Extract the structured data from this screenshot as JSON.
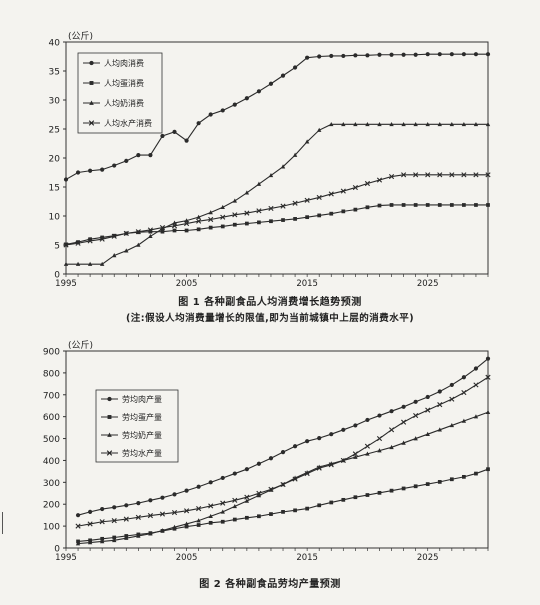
{
  "chart_data": [
    {
      "type": "line",
      "unit_label": "(公斤)",
      "caption_title": "图 1  各种副食品人均消费增长趋势预测",
      "caption_note": "(注:假设人均消费量增长的限值,即为当前城镇中上层的消费水平)",
      "x_ticks": [
        "1995",
        "2005",
        "2015",
        "2025"
      ],
      "y_ticks": [
        "0",
        "5",
        "10",
        "15",
        "20",
        "25",
        "30",
        "35",
        "40"
      ],
      "xlim": [
        1995,
        2030
      ],
      "ylim": [
        0,
        40
      ],
      "grid": false,
      "legend_position": "top-left",
      "x": [
        1995,
        1996,
        1997,
        1998,
        1999,
        2000,
        2001,
        2002,
        2003,
        2004,
        2005,
        2006,
        2007,
        2008,
        2009,
        2010,
        2011,
        2012,
        2013,
        2014,
        2015,
        2016,
        2017,
        2018,
        2019,
        2020,
        2021,
        2022,
        2023,
        2024,
        2025,
        2026,
        2027,
        2028,
        2029,
        2030
      ],
      "series": [
        {
          "name": "人均肉消费",
          "marker": "circle",
          "values": [
            16.3,
            17.5,
            17.8,
            18.0,
            18.7,
            19.5,
            20.5,
            20.5,
            23.8,
            24.5,
            23.0,
            26.0,
            27.5,
            28.2,
            29.2,
            30.3,
            31.5,
            32.8,
            34.2,
            35.6,
            37.3,
            37.5,
            37.6,
            37.6,
            37.7,
            37.7,
            37.8,
            37.8,
            37.8,
            37.8,
            37.9,
            37.9,
            37.9,
            37.9,
            37.9,
            37.9
          ]
        },
        {
          "name": "人均蛋消费",
          "marker": "square",
          "values": [
            5.1,
            5.5,
            6.0,
            6.3,
            6.6,
            7.0,
            7.2,
            7.3,
            7.3,
            7.5,
            7.5,
            7.7,
            8.0,
            8.2,
            8.5,
            8.7,
            8.9,
            9.1,
            9.3,
            9.5,
            9.8,
            10.1,
            10.4,
            10.8,
            11.1,
            11.5,
            11.8,
            11.9,
            11.9,
            11.9,
            11.9,
            11.9,
            11.9,
            11.9,
            11.9,
            11.9
          ]
        },
        {
          "name": "人均奶消费",
          "marker": "triangle",
          "values": [
            1.7,
            1.7,
            1.7,
            1.7,
            3.2,
            4.0,
            5.0,
            6.5,
            7.8,
            8.8,
            9.2,
            9.8,
            10.6,
            11.5,
            12.6,
            14.0,
            15.5,
            17.0,
            18.5,
            20.5,
            22.8,
            24.8,
            25.8,
            25.8,
            25.8,
            25.8,
            25.8,
            25.8,
            25.8,
            25.8,
            25.8,
            25.8,
            25.8,
            25.8,
            25.8,
            25.8
          ]
        },
        {
          "name": "人均水产消费",
          "marker": "cross",
          "values": [
            5.0,
            5.3,
            5.7,
            6.0,
            6.5,
            7.0,
            7.3,
            7.6,
            8.0,
            8.3,
            8.7,
            9.1,
            9.4,
            9.8,
            10.2,
            10.5,
            10.9,
            11.3,
            11.7,
            12.2,
            12.7,
            13.2,
            13.8,
            14.3,
            14.9,
            15.6,
            16.2,
            16.8,
            17.1,
            17.1,
            17.1,
            17.1,
            17.1,
            17.1,
            17.1,
            17.1
          ]
        }
      ]
    },
    {
      "type": "line",
      "unit_label": "(公斤)",
      "caption_title": "图 2  各种副食品劳均产量预测",
      "x_ticks": [
        "1995",
        "2005",
        "2015",
        "2025"
      ],
      "y_ticks": [
        "0",
        "100",
        "200",
        "300",
        "400",
        "500",
        "600",
        "700",
        "800",
        "900"
      ],
      "xlim": [
        1995,
        2030
      ],
      "ylim": [
        0,
        900
      ],
      "grid": false,
      "legend_position": "left",
      "x": [
        1996,
        1997,
        1998,
        1999,
        2000,
        2001,
        2002,
        2003,
        2004,
        2005,
        2006,
        2007,
        2008,
        2009,
        2010,
        2011,
        2012,
        2013,
        2014,
        2015,
        2016,
        2017,
        2018,
        2019,
        2020,
        2021,
        2022,
        2023,
        2024,
        2025,
        2026,
        2027,
        2028,
        2029,
        2030
      ],
      "series": [
        {
          "name": "劳均肉产量",
          "marker": "circle",
          "values": [
            150,
            165,
            178,
            186,
            195,
            205,
            218,
            230,
            245,
            262,
            280,
            300,
            320,
            340,
            360,
            385,
            410,
            438,
            465,
            488,
            502,
            520,
            540,
            560,
            585,
            605,
            625,
            645,
            668,
            690,
            715,
            745,
            780,
            820,
            865
          ]
        },
        {
          "name": "劳均蛋产量",
          "marker": "square",
          "values": [
            30,
            35,
            42,
            48,
            55,
            62,
            68,
            78,
            88,
            98,
            105,
            115,
            120,
            130,
            138,
            145,
            155,
            165,
            172,
            180,
            195,
            208,
            220,
            232,
            242,
            252,
            262,
            272,
            282,
            292,
            302,
            314,
            325,
            340,
            360
          ]
        },
        {
          "name": "劳均奶产量",
          "marker": "triangle",
          "values": [
            20,
            25,
            30,
            35,
            45,
            55,
            65,
            80,
            95,
            110,
            125,
            145,
            165,
            190,
            215,
            240,
            265,
            290,
            320,
            345,
            370,
            385,
            400,
            415,
            430,
            445,
            460,
            480,
            500,
            520,
            540,
            560,
            580,
            600,
            620
          ]
        },
        {
          "name": "劳均水产量",
          "marker": "cross",
          "values": [
            100,
            110,
            120,
            125,
            132,
            140,
            148,
            155,
            162,
            170,
            180,
            192,
            205,
            218,
            232,
            250,
            268,
            290,
            315,
            340,
            365,
            380,
            400,
            430,
            465,
            500,
            540,
            575,
            605,
            630,
            655,
            680,
            710,
            745,
            780
          ]
        }
      ]
    }
  ]
}
